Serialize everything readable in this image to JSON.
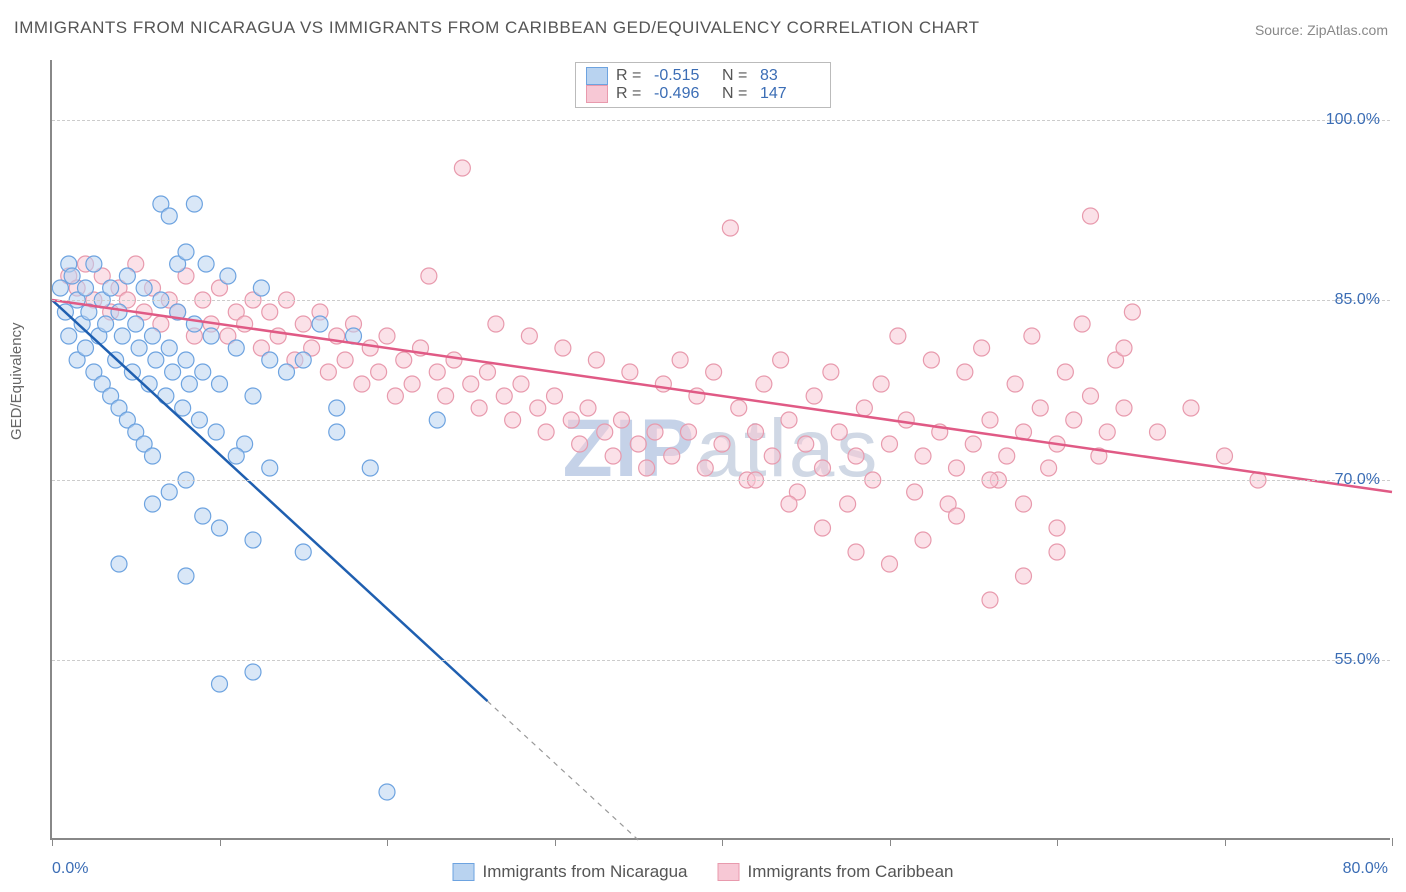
{
  "title": "IMMIGRANTS FROM NICARAGUA VS IMMIGRANTS FROM CARIBBEAN GED/EQUIVALENCY CORRELATION CHART",
  "source": "Source: ZipAtlas.com",
  "ylabel": "GED/Equivalency",
  "watermark_bold": "ZIP",
  "watermark_rest": "atlas",
  "chart": {
    "type": "scatter",
    "background_color": "#ffffff",
    "grid_color": "#cccccc",
    "axis_color": "#888888",
    "marker_radius": 8,
    "marker_opacity": 0.55,
    "line_width": 2.5,
    "x_domain": [
      0,
      80
    ],
    "y_domain": [
      40,
      105
    ],
    "xticks": [
      0,
      10,
      20,
      30,
      40,
      50,
      60,
      70,
      80
    ],
    "xtick_labels": {
      "0": "0.0%",
      "80": "80.0%"
    },
    "yticks": [
      55,
      70,
      85,
      100
    ],
    "ytick_labels": {
      "55": "55.0%",
      "70": "70.0%",
      "85": "85.0%",
      "100": "100.0%"
    },
    "tick_label_color": "#3b6db5",
    "tick_label_fontsize": 16,
    "title_fontsize": 17,
    "title_color": "#555555"
  },
  "series": {
    "nicaragua": {
      "label": "Immigrants from Nicaragua",
      "fill_color": "#b9d3f0",
      "stroke_color": "#6da3e0",
      "line_color": "#1f5fb0",
      "R": "-0.515",
      "N": "83",
      "trend": {
        "x1": 0,
        "y1": 85,
        "x2": 35,
        "y2": 40,
        "dash_after_x": 26
      },
      "points": [
        [
          0.5,
          86
        ],
        [
          0.8,
          84
        ],
        [
          1,
          88
        ],
        [
          1,
          82
        ],
        [
          1.2,
          87
        ],
        [
          1.5,
          85
        ],
        [
          1.5,
          80
        ],
        [
          1.8,
          83
        ],
        [
          2,
          86
        ],
        [
          2,
          81
        ],
        [
          2.2,
          84
        ],
        [
          2.5,
          88
        ],
        [
          2.5,
          79
        ],
        [
          2.8,
          82
        ],
        [
          3,
          85
        ],
        [
          3,
          78
        ],
        [
          3.2,
          83
        ],
        [
          3.5,
          86
        ],
        [
          3.5,
          77
        ],
        [
          3.8,
          80
        ],
        [
          4,
          84
        ],
        [
          4,
          76
        ],
        [
          4.2,
          82
        ],
        [
          4.5,
          87
        ],
        [
          4.5,
          75
        ],
        [
          4.8,
          79
        ],
        [
          5,
          83
        ],
        [
          5,
          74
        ],
        [
          5.2,
          81
        ],
        [
          5.5,
          86
        ],
        [
          5.5,
          73
        ],
        [
          5.8,
          78
        ],
        [
          6,
          82
        ],
        [
          6,
          72
        ],
        [
          6.2,
          80
        ],
        [
          6.5,
          85
        ],
        [
          6.5,
          93
        ],
        [
          6.8,
          77
        ],
        [
          7,
          81
        ],
        [
          7,
          92
        ],
        [
          7.2,
          79
        ],
        [
          7.5,
          84
        ],
        [
          7.5,
          88
        ],
        [
          7.8,
          76
        ],
        [
          8,
          80
        ],
        [
          8,
          89
        ],
        [
          8.2,
          78
        ],
        [
          8.5,
          83
        ],
        [
          8.5,
          93
        ],
        [
          8.8,
          75
        ],
        [
          9,
          79
        ],
        [
          9.2,
          88
        ],
        [
          9.5,
          82
        ],
        [
          9.8,
          74
        ],
        [
          10,
          78
        ],
        [
          10.5,
          87
        ],
        [
          11,
          81
        ],
        [
          11.5,
          73
        ],
        [
          12,
          77
        ],
        [
          12.5,
          86
        ],
        [
          13,
          80
        ],
        [
          6,
          68
        ],
        [
          7,
          69
        ],
        [
          8,
          70
        ],
        [
          9,
          67
        ],
        [
          10,
          66
        ],
        [
          11,
          72
        ],
        [
          12,
          65
        ],
        [
          13,
          71
        ],
        [
          14,
          79
        ],
        [
          15,
          80
        ],
        [
          16,
          83
        ],
        [
          17,
          76
        ],
        [
          18,
          82
        ],
        [
          4,
          63
        ],
        [
          8,
          62
        ],
        [
          10,
          53
        ],
        [
          12,
          54
        ],
        [
          15,
          64
        ],
        [
          17,
          74
        ],
        [
          19,
          71
        ],
        [
          20,
          44
        ],
        [
          23,
          75
        ]
      ]
    },
    "caribbean": {
      "label": "Immigrants from Caribbean",
      "fill_color": "#f7c8d5",
      "stroke_color": "#e89aad",
      "line_color": "#e05a85",
      "R": "-0.496",
      "N": "147",
      "trend": {
        "x1": 0,
        "y1": 85,
        "x2": 80,
        "y2": 69,
        "dash_after_x": 80
      },
      "points": [
        [
          1,
          87
        ],
        [
          1.5,
          86
        ],
        [
          2,
          88
        ],
        [
          2.5,
          85
        ],
        [
          3,
          87
        ],
        [
          3.5,
          84
        ],
        [
          4,
          86
        ],
        [
          4.5,
          85
        ],
        [
          5,
          88
        ],
        [
          5.5,
          84
        ],
        [
          6,
          86
        ],
        [
          6.5,
          83
        ],
        [
          7,
          85
        ],
        [
          7.5,
          84
        ],
        [
          8,
          87
        ],
        [
          8.5,
          82
        ],
        [
          9,
          85
        ],
        [
          9.5,
          83
        ],
        [
          10,
          86
        ],
        [
          10.5,
          82
        ],
        [
          11,
          84
        ],
        [
          11.5,
          83
        ],
        [
          12,
          85
        ],
        [
          12.5,
          81
        ],
        [
          13,
          84
        ],
        [
          13.5,
          82
        ],
        [
          14,
          85
        ],
        [
          14.5,
          80
        ],
        [
          15,
          83
        ],
        [
          15.5,
          81
        ],
        [
          16,
          84
        ],
        [
          16.5,
          79
        ],
        [
          17,
          82
        ],
        [
          17.5,
          80
        ],
        [
          18,
          83
        ],
        [
          18.5,
          78
        ],
        [
          19,
          81
        ],
        [
          19.5,
          79
        ],
        [
          20,
          82
        ],
        [
          20.5,
          77
        ],
        [
          21,
          80
        ],
        [
          21.5,
          78
        ],
        [
          22,
          81
        ],
        [
          22.5,
          87
        ],
        [
          23,
          79
        ],
        [
          23.5,
          77
        ],
        [
          24,
          80
        ],
        [
          24.5,
          96
        ],
        [
          25,
          78
        ],
        [
          25.5,
          76
        ],
        [
          26,
          79
        ],
        [
          26.5,
          83
        ],
        [
          27,
          77
        ],
        [
          27.5,
          75
        ],
        [
          28,
          78
        ],
        [
          28.5,
          82
        ],
        [
          29,
          76
        ],
        [
          29.5,
          74
        ],
        [
          30,
          77
        ],
        [
          30.5,
          81
        ],
        [
          31,
          75
        ],
        [
          31.5,
          73
        ],
        [
          32,
          76
        ],
        [
          32.5,
          80
        ],
        [
          33,
          74
        ],
        [
          33.5,
          72
        ],
        [
          34,
          75
        ],
        [
          34.5,
          79
        ],
        [
          35,
          73
        ],
        [
          35.5,
          71
        ],
        [
          36,
          74
        ],
        [
          36.5,
          78
        ],
        [
          37,
          72
        ],
        [
          37.5,
          80
        ],
        [
          38,
          74
        ],
        [
          38.5,
          77
        ],
        [
          39,
          71
        ],
        [
          39.5,
          79
        ],
        [
          40,
          73
        ],
        [
          40.5,
          91
        ],
        [
          41,
          76
        ],
        [
          41.5,
          70
        ],
        [
          42,
          74
        ],
        [
          42.5,
          78
        ],
        [
          43,
          72
        ],
        [
          43.5,
          80
        ],
        [
          44,
          75
        ],
        [
          44.5,
          69
        ],
        [
          45,
          73
        ],
        [
          45.5,
          77
        ],
        [
          46,
          71
        ],
        [
          46.5,
          79
        ],
        [
          47,
          74
        ],
        [
          47.5,
          68
        ],
        [
          48,
          72
        ],
        [
          48.5,
          76
        ],
        [
          49,
          70
        ],
        [
          49.5,
          78
        ],
        [
          50,
          73
        ],
        [
          50.5,
          82
        ],
        [
          51,
          75
        ],
        [
          51.5,
          69
        ],
        [
          52,
          72
        ],
        [
          52.5,
          80
        ],
        [
          53,
          74
        ],
        [
          53.5,
          68
        ],
        [
          54,
          71
        ],
        [
          54.5,
          79
        ],
        [
          55,
          73
        ],
        [
          55.5,
          81
        ],
        [
          56,
          75
        ],
        [
          56.5,
          70
        ],
        [
          57,
          72
        ],
        [
          57.5,
          78
        ],
        [
          58,
          74
        ],
        [
          58.5,
          82
        ],
        [
          59,
          76
        ],
        [
          59.5,
          71
        ],
        [
          60,
          73
        ],
        [
          60.5,
          79
        ],
        [
          61,
          75
        ],
        [
          61.5,
          83
        ],
        [
          62,
          77
        ],
        [
          62.5,
          72
        ],
        [
          63,
          74
        ],
        [
          63.5,
          80
        ],
        [
          64,
          76
        ],
        [
          64.5,
          84
        ],
        [
          56,
          60
        ],
        [
          58,
          62
        ],
        [
          60,
          64
        ],
        [
          50,
          63
        ],
        [
          52,
          65
        ],
        [
          54,
          67
        ],
        [
          62,
          92
        ],
        [
          64,
          81
        ],
        [
          66,
          74
        ],
        [
          68,
          76
        ],
        [
          70,
          72
        ],
        [
          72,
          70
        ],
        [
          60,
          66
        ],
        [
          58,
          68
        ],
        [
          56,
          70
        ],
        [
          48,
          64
        ],
        [
          46,
          66
        ],
        [
          44,
          68
        ],
        [
          42,
          70
        ]
      ]
    }
  },
  "legend_top": {
    "rows": [
      {
        "swatch_fill": "#b9d3f0",
        "swatch_stroke": "#6da3e0",
        "R_lbl": "R =",
        "R_val": "-0.515",
        "N_lbl": "N =",
        "N_val": "83"
      },
      {
        "swatch_fill": "#f7c8d5",
        "swatch_stroke": "#e89aad",
        "R_lbl": "R =",
        "R_val": "-0.496",
        "N_lbl": "N =",
        "N_val": "147"
      }
    ]
  },
  "legend_bottom": {
    "items": [
      {
        "swatch_fill": "#b9d3f0",
        "swatch_stroke": "#6da3e0",
        "label": "Immigrants from Nicaragua"
      },
      {
        "swatch_fill": "#f7c8d5",
        "swatch_stroke": "#e89aad",
        "label": "Immigrants from Caribbean"
      }
    ]
  }
}
